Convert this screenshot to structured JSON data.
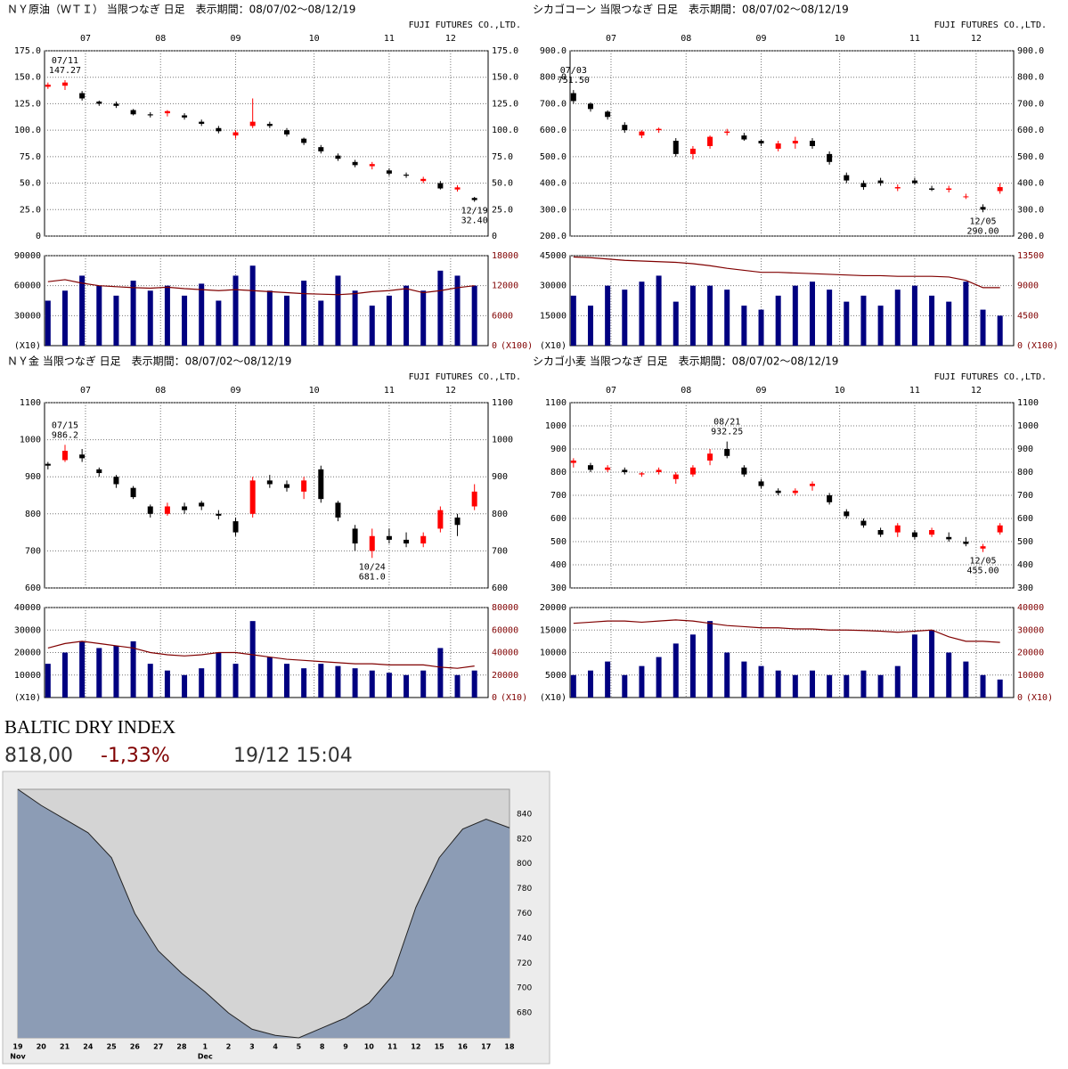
{
  "chart_data": [
    {
      "type": "candlestick",
      "title": "ＮＹ原油（ＷＴＩ） 当限つなぎ 日足　表示期間：08/07/02～08/12/19",
      "company": "FUJI FUTURES CO.,LTD.",
      "x": [
        0,
        5,
        10,
        15,
        20,
        25,
        30,
        35,
        40,
        45,
        50,
        55,
        60,
        65,
        70,
        75,
        80,
        85,
        90,
        95,
        100,
        105,
        110,
        115,
        120,
        125
      ],
      "xlim": [
        -1,
        129
      ],
      "xticks": [
        {
          "value": 11,
          "label": "07"
        },
        {
          "value": 33,
          "label": "08"
        },
        {
          "value": 55,
          "label": "09"
        },
        {
          "value": 78,
          "label": "10"
        },
        {
          "value": 100,
          "label": "11"
        },
        {
          "value": 118,
          "label": "12"
        }
      ],
      "ylim": [
        0,
        175
      ],
      "yticks": [
        0,
        {
          "value": 25,
          "label": "25.0"
        },
        {
          "value": 50,
          "label": "50.0"
        },
        {
          "value": 75,
          "label": "75.0"
        },
        {
          "value": 100,
          "label": "100.0"
        },
        {
          "value": 125,
          "label": "125.0"
        },
        {
          "value": 150,
          "label": "150.0"
        },
        {
          "value": 175,
          "label": "175.0"
        }
      ],
      "open": [
        141,
        142,
        135,
        127,
        125,
        119,
        115,
        116,
        114,
        108,
        102,
        95,
        104,
        106,
        100,
        92,
        84,
        76,
        70,
        66,
        62,
        58,
        52,
        50,
        44,
        36
      ],
      "high": [
        145,
        147.27,
        137,
        128,
        127,
        120,
        117,
        119,
        116,
        110,
        104,
        100,
        130,
        108,
        102,
        93,
        86,
        78,
        72,
        70,
        64,
        60,
        56,
        52,
        48,
        37
      ],
      "low": [
        139,
        138,
        128,
        123,
        121,
        114,
        112,
        113,
        110,
        104,
        97,
        92,
        102,
        102,
        94,
        86,
        78,
        71,
        65,
        63,
        57,
        55,
        50,
        44,
        42,
        32.4
      ],
      "close": [
        143,
        145,
        130,
        125,
        123,
        115,
        114,
        118,
        112,
        106,
        99,
        98,
        108,
        104,
        96,
        88,
        80,
        73,
        67,
        68,
        59,
        57,
        54,
        45,
        46,
        34
      ],
      "up_color": "#ff0000",
      "down_color": "#000000",
      "grid": true,
      "annotations": [
        {
          "date": "07/11",
          "value": 147.27
        },
        {
          "date": "12/19",
          "value": 32.4,
          "label": "32.40"
        }
      ],
      "volume": {
        "values": [
          45000,
          55000,
          70000,
          60000,
          50000,
          65000,
          55000,
          60000,
          50000,
          62000,
          45000,
          70000,
          80000,
          55000,
          50000,
          65000,
          45000,
          70000,
          55000,
          40000,
          50000,
          60000,
          55000,
          75000,
          70000,
          60000
        ],
        "color": "#000080",
        "ylim": [
          0,
          90000
        ],
        "yticks": [
          30000,
          60000,
          90000
        ],
        "unit": "(X10)"
      },
      "open_interest": {
        "values": [
          12800,
          13200,
          12500,
          12000,
          11800,
          11600,
          11500,
          11700,
          11400,
          11200,
          11000,
          11200,
          11000,
          10800,
          10600,
          10400,
          10300,
          10200,
          10400,
          10800,
          11000,
          11400,
          10600,
          11000,
          11600,
          12000
        ],
        "color": "#800000",
        "ylim": [
          0,
          18000
        ],
        "yticks": [
          0,
          6000,
          12000,
          18000
        ],
        "unit": "(X100)"
      }
    },
    {
      "type": "candlestick",
      "title": "シカゴコーン 当限つなぎ 日足　表示期間：08/07/02～08/12/19",
      "company": "FUJI FUTURES CO.,LTD.",
      "x": [
        0,
        5,
        10,
        15,
        20,
        25,
        30,
        35,
        40,
        45,
        50,
        55,
        60,
        65,
        70,
        75,
        80,
        85,
        90,
        95,
        100,
        105,
        110,
        115,
        120,
        125
      ],
      "xlim": [
        -1,
        129
      ],
      "xticks": [
        {
          "value": 11,
          "label": "07"
        },
        {
          "value": 33,
          "label": "08"
        },
        {
          "value": 55,
          "label": "09"
        },
        {
          "value": 78,
          "label": "10"
        },
        {
          "value": 100,
          "label": "11"
        },
        {
          "value": 118,
          "label": "12"
        }
      ],
      "ylim": [
        200,
        900
      ],
      "yticks": [
        {
          "value": 200,
          "label": "200.0"
        },
        {
          "value": 300,
          "label": "300.0"
        },
        {
          "value": 400,
          "label": "400.0"
        },
        {
          "value": 500,
          "label": "500.0"
        },
        {
          "value": 600,
          "label": "600.0"
        },
        {
          "value": 700,
          "label": "700.0"
        },
        {
          "value": 800,
          "label": "800.0"
        },
        {
          "value": 900,
          "label": "900.0"
        }
      ],
      "open": [
        740,
        700,
        670,
        620,
        580,
        600,
        560,
        510,
        540,
        590,
        580,
        560,
        530,
        550,
        560,
        510,
        430,
        400,
        410,
        380,
        410,
        380,
        375,
        350,
        310,
        370
      ],
      "high": [
        751.5,
        705,
        675,
        630,
        600,
        610,
        570,
        540,
        580,
        605,
        590,
        565,
        560,
        575,
        570,
        520,
        440,
        410,
        420,
        395,
        420,
        390,
        390,
        360,
        320,
        400
      ],
      "low": [
        700,
        670,
        640,
        590,
        570,
        590,
        500,
        490,
        530,
        580,
        560,
        540,
        520,
        530,
        530,
        470,
        400,
        375,
        390,
        370,
        395,
        370,
        365,
        340,
        290,
        360
      ],
      "close": [
        710,
        680,
        650,
        600,
        595,
        605,
        510,
        530,
        575,
        595,
        565,
        550,
        550,
        560,
        540,
        480,
        410,
        385,
        400,
        385,
        400,
        375,
        380,
        350,
        300,
        385
      ],
      "up_color": "#ff0000",
      "down_color": "#000000",
      "grid": true,
      "annotations": [
        {
          "date": "07/03",
          "value": 751.5,
          "label": "751.50"
        },
        {
          "date": "12/05",
          "value": 290,
          "label": "290.00"
        }
      ],
      "volume": {
        "values": [
          25000,
          20000,
          30000,
          28000,
          32000,
          35000,
          22000,
          30000,
          30000,
          28000,
          20000,
          18000,
          25000,
          30000,
          32000,
          28000,
          22000,
          25000,
          20000,
          28000,
          30000,
          25000,
          22000,
          32000,
          18000,
          15000
        ],
        "color": "#000080",
        "ylim": [
          0,
          45000
        ],
        "yticks": [
          15000,
          30000,
          45000
        ],
        "unit": "(X10)"
      },
      "open_interest": {
        "values": [
          13300,
          13200,
          13000,
          12800,
          12700,
          12600,
          12500,
          12300,
          12000,
          11600,
          11300,
          11000,
          11000,
          10900,
          10800,
          10700,
          10600,
          10500,
          10500,
          10400,
          10400,
          10400,
          10300,
          9800,
          8700,
          8700
        ],
        "color": "#800000",
        "ylim": [
          0,
          13500
        ],
        "yticks": [
          0,
          4500,
          9000,
          13500
        ],
        "unit": "(X100)"
      }
    },
    {
      "type": "candlestick",
      "title": "ＮＹ金 当限つなぎ 日足　表示期間：08/07/02～08/12/19",
      "company": "FUJI FUTURES CO.,LTD.",
      "x": [
        0,
        5,
        10,
        15,
        20,
        25,
        30,
        35,
        40,
        45,
        50,
        55,
        60,
        65,
        70,
        75,
        80,
        85,
        90,
        95,
        100,
        105,
        110,
        115,
        120,
        125
      ],
      "xlim": [
        -1,
        129
      ],
      "xticks": [
        {
          "value": 11,
          "label": "07"
        },
        {
          "value": 33,
          "label": "08"
        },
        {
          "value": 55,
          "label": "09"
        },
        {
          "value": 78,
          "label": "10"
        },
        {
          "value": 100,
          "label": "11"
        },
        {
          "value": 118,
          "label": "12"
        }
      ],
      "ylim": [
        600,
        1100
      ],
      "yticks": [
        600,
        700,
        800,
        900,
        1000,
        1100
      ],
      "open": [
        935,
        945,
        960,
        920,
        900,
        870,
        820,
        800,
        820,
        830,
        800,
        780,
        800,
        890,
        880,
        860,
        920,
        830,
        760,
        700,
        740,
        730,
        720,
        760,
        790,
        820
      ],
      "high": [
        940,
        986.2,
        975,
        925,
        905,
        875,
        825,
        830,
        830,
        835,
        810,
        790,
        900,
        905,
        890,
        900,
        930,
        835,
        770,
        760,
        760,
        750,
        750,
        820,
        800,
        880
      ],
      "low": [
        920,
        940,
        940,
        900,
        870,
        840,
        790,
        795,
        800,
        810,
        785,
        740,
        790,
        870,
        860,
        840,
        830,
        780,
        700,
        681,
        720,
        710,
        710,
        750,
        740,
        810
      ],
      "close": [
        930,
        970,
        950,
        910,
        880,
        845,
        800,
        820,
        810,
        820,
        795,
        750,
        890,
        880,
        870,
        890,
        840,
        790,
        720,
        740,
        730,
        720,
        740,
        810,
        770,
        860
      ],
      "up_color": "#ff0000",
      "down_color": "#000000",
      "grid": true,
      "annotations": [
        {
          "date": "07/15",
          "value": 986.2
        },
        {
          "date": "10/24",
          "value": 681,
          "label": "681.0"
        }
      ],
      "volume": {
        "values": [
          15000,
          20000,
          25000,
          22000,
          23000,
          25000,
          15000,
          12000,
          10000,
          13000,
          20000,
          15000,
          34000,
          18000,
          15000,
          13000,
          15000,
          14000,
          13000,
          12000,
          11000,
          10000,
          12000,
          22000,
          10000,
          12000
        ],
        "color": "#000080",
        "ylim": [
          0,
          40000
        ],
        "yticks": [
          10000,
          20000,
          30000,
          40000
        ],
        "unit": "(X10)"
      },
      "open_interest": {
        "values": [
          44000,
          48000,
          50000,
          48000,
          46000,
          44000,
          40000,
          38000,
          37000,
          38000,
          40000,
          40000,
          38000,
          36000,
          34000,
          33000,
          32000,
          31000,
          30000,
          30000,
          29000,
          29000,
          29000,
          27000,
          26000,
          28000
        ],
        "color": "#800000",
        "ylim": [
          0,
          80000
        ],
        "yticks": [
          0,
          20000,
          40000,
          60000,
          80000
        ],
        "unit": "(X10)"
      }
    },
    {
      "type": "candlestick",
      "title": "シカゴ小麦 当限つなぎ 日足　表示期間：08/07/02～08/12/19",
      "company": "FUJI FUTURES CO.,LTD.",
      "x": [
        0,
        5,
        10,
        15,
        20,
        25,
        30,
        35,
        40,
        45,
        50,
        55,
        60,
        65,
        70,
        75,
        80,
        85,
        90,
        95,
        100,
        105,
        110,
        115,
        120,
        125
      ],
      "xlim": [
        -1,
        129
      ],
      "xticks": [
        {
          "value": 11,
          "label": "07"
        },
        {
          "value": 33,
          "label": "08"
        },
        {
          "value": 55,
          "label": "09"
        },
        {
          "value": 78,
          "label": "10"
        },
        {
          "value": 100,
          "label": "11"
        },
        {
          "value": 118,
          "label": "12"
        }
      ],
      "ylim": [
        300,
        1100
      ],
      "yticks": [
        300,
        400,
        500,
        600,
        700,
        800,
        900,
        1000,
        1100
      ],
      "open": [
        840,
        830,
        810,
        810,
        790,
        800,
        770,
        790,
        850,
        900,
        820,
        760,
        720,
        710,
        740,
        700,
        630,
        590,
        550,
        540,
        540,
        530,
        520,
        500,
        470,
        540
      ],
      "high": [
        860,
        840,
        830,
        820,
        800,
        820,
        800,
        830,
        900,
        932.25,
        830,
        770,
        730,
        730,
        760,
        710,
        640,
        600,
        560,
        580,
        550,
        560,
        540,
        520,
        490,
        580
      ],
      "low": [
        820,
        800,
        800,
        790,
        780,
        790,
        750,
        780,
        830,
        860,
        780,
        730,
        700,
        700,
        720,
        660,
        600,
        560,
        520,
        520,
        510,
        520,
        500,
        480,
        455,
        530
      ],
      "close": [
        850,
        810,
        820,
        800,
        795,
        810,
        790,
        820,
        880,
        870,
        790,
        740,
        710,
        720,
        750,
        670,
        610,
        570,
        530,
        570,
        520,
        550,
        510,
        490,
        480,
        570
      ],
      "up_color": "#ff0000",
      "down_color": "#000000",
      "grid": true,
      "annotations": [
        {
          "date": "08/21",
          "value": 932.25
        },
        {
          "date": "12/05",
          "value": 455,
          "label": "455.00"
        }
      ],
      "volume": {
        "values": [
          5000,
          6000,
          8000,
          5000,
          7000,
          9000,
          12000,
          14000,
          17000,
          10000,
          8000,
          7000,
          6000,
          5000,
          6000,
          5000,
          5000,
          6000,
          5000,
          7000,
          14000,
          15000,
          10000,
          8000,
          5000,
          4000
        ],
        "color": "#000080",
        "ylim": [
          0,
          20000
        ],
        "yticks": [
          5000,
          10000,
          15000,
          20000
        ],
        "unit": "(X10)"
      },
      "open_interest": {
        "values": [
          33000,
          33500,
          34000,
          34000,
          33500,
          34000,
          34500,
          34000,
          33000,
          32000,
          31500,
          31000,
          31000,
          30500,
          30500,
          30000,
          30000,
          29800,
          29500,
          29000,
          29500,
          30000,
          27000,
          25000,
          25000,
          24500
        ],
        "color": "#800000",
        "ylim": [
          0,
          40000
        ],
        "yticks": [
          0,
          10000,
          20000,
          30000,
          40000
        ],
        "unit": "(X10)"
      }
    },
    {
      "type": "area",
      "title": "BALTIC DRY INDEX",
      "price": "818,00",
      "change": "-1,33%",
      "time": "19/12 15:04",
      "categories": [
        "19",
        "20",
        "21",
        "24",
        "25",
        "26",
        "27",
        "28",
        "1",
        "2",
        "3",
        "4",
        "5",
        "8",
        "9",
        "10",
        "11",
        "12",
        "15",
        "16",
        "17",
        "18"
      ],
      "sublabels": [
        "Nov",
        null,
        null,
        null,
        null,
        null,
        null,
        null,
        "Dec",
        null,
        null,
        null,
        null,
        null,
        null,
        null,
        null,
        null,
        null,
        null,
        null,
        null
      ],
      "values": [
        860,
        847,
        836,
        825,
        805,
        760,
        730,
        712,
        697,
        680,
        667,
        662,
        660,
        668,
        676,
        688,
        710,
        765,
        805,
        828,
        836,
        829
      ],
      "color": "#8c9cb5",
      "background": "#d4d4d4",
      "ylim": [
        660,
        860
      ],
      "yticks": [
        680,
        700,
        720,
        740,
        760,
        780,
        800,
        820,
        840
      ]
    }
  ]
}
